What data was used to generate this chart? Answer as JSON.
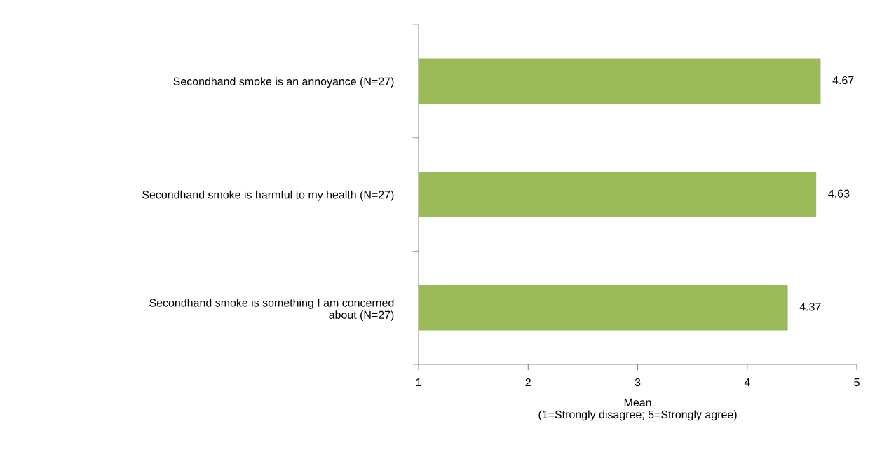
{
  "chart_data": {
    "type": "bar",
    "orientation": "horizontal",
    "categories": [
      "Secondhand smoke is an annoyance (N=27)",
      "Secondhand smoke is harmful to my health (N=27)",
      "Secondhand smoke is something I am concerned\nabout (N=27)"
    ],
    "values": [
      4.67,
      4.63,
      4.37
    ],
    "color": "#9bbb59",
    "xlim": [
      1,
      5
    ],
    "xticks": [
      1,
      2,
      3,
      4,
      5
    ],
    "xlabel": "Mean\n(1=Strongly disagree; 5=Strongly agree)",
    "data_labels": true,
    "grid": false
  }
}
